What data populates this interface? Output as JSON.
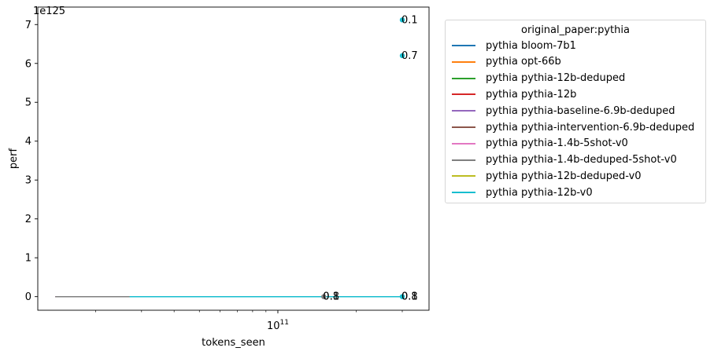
{
  "chart_data": {
    "type": "line",
    "xlabel": "tokens_seen",
    "ylabel": "perf",
    "x_scale": "log",
    "x_ticks": [
      {
        "value": 100000000000,
        "base": "10",
        "exp": "11"
      }
    ],
    "y_ticks": [
      "0",
      "1",
      "2",
      "3",
      "4",
      "5",
      "6",
      "7"
    ],
    "y_offset_label": "1e125",
    "ylim": [
      -0.35,
      7.45
    ],
    "xlim": [
      12000000000,
      380000000000
    ],
    "grid": false,
    "legend_title": "original_paper:pythia",
    "legend_placement": "outside-right",
    "series": [
      {
        "name": "pythia bloom-7b1",
        "color": "#1f77b4",
        "points": [
          [
            14000000000,
            0
          ],
          [
            300000000000,
            0
          ]
        ]
      },
      {
        "name": "pythia opt-66b",
        "color": "#ff7f0e",
        "points": [
          [
            14000000000,
            0
          ],
          [
            300000000000,
            0
          ]
        ]
      },
      {
        "name": "pythia pythia-12b-deduped",
        "color": "#2ca02c",
        "points": [
          [
            14000000000,
            0
          ],
          [
            300000000000,
            0
          ]
        ]
      },
      {
        "name": "pythia pythia-12b",
        "color": "#d62728",
        "points": [
          [
            14000000000,
            0
          ],
          [
            300000000000,
            0
          ]
        ]
      },
      {
        "name": "pythia pythia-baseline-6.9b-deduped",
        "color": "#9467bd",
        "points": [
          [
            14000000000,
            0
          ],
          [
            300000000000,
            0
          ]
        ]
      },
      {
        "name": "pythia pythia-intervention-6.9b-deduped",
        "color": "#8c564b",
        "points": [
          [
            14000000000,
            0
          ],
          [
            300000000000,
            0
          ]
        ]
      },
      {
        "name": "pythia pythia-1.4b-5shot-v0",
        "color": "#e377c2",
        "points": [
          [
            14000000000,
            0
          ],
          [
            150000000000,
            0
          ]
        ]
      },
      {
        "name": "pythia pythia-1.4b-deduped-5shot-v0",
        "color": "#7f7f7f",
        "points": [
          [
            14000000000,
            0
          ],
          [
            150000000000,
            0
          ]
        ]
      },
      {
        "name": "pythia pythia-12b-deduped-v0",
        "color": "#bcbd22",
        "points": [
          [
            27000000000,
            0
          ],
          [
            300000000000,
            0
          ]
        ]
      },
      {
        "name": "pythia pythia-12b-v0",
        "color": "#17becf",
        "points": [
          [
            27000000000,
            0
          ],
          [
            300000000000,
            0
          ]
        ]
      }
    ],
    "markers": [
      {
        "x": 150000000000,
        "y": 0,
        "color": "#7f7f7f"
      },
      {
        "x": 300000000000,
        "y": 0,
        "color": "#17becf"
      },
      {
        "x": 300000000000,
        "y": 6.2,
        "color": "#17becf"
      },
      {
        "x": 300000000000,
        "y": 7.12,
        "color": "#17becf"
      }
    ],
    "annotations": [
      {
        "text": "0.1",
        "x": 300000000000,
        "y": 7.12
      },
      {
        "text": "0.7",
        "x": 300000000000,
        "y": 6.2
      },
      {
        "text": "0.1",
        "x": 150000000000,
        "y": 0
      },
      {
        "text": "0.8",
        "x": 150000000000,
        "y": 0
      },
      {
        "text": "0.1",
        "x": 300000000000,
        "y": 0
      },
      {
        "text": "0.8",
        "x": 300000000000,
        "y": 0
      }
    ]
  }
}
